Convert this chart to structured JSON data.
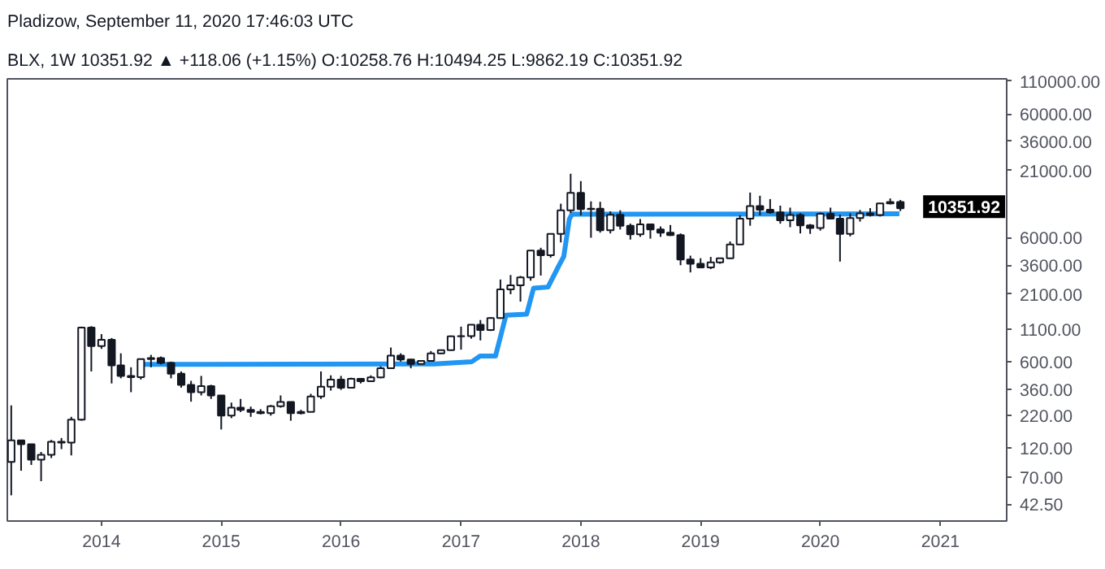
{
  "chart_data": {
    "type": "candlestick",
    "annotations": [
      "Pladizow, September 11, 2020 17:46:03 UTC",
      "BLX, 1W  10351.92 ▲ +118.06 (+1.15%)  O:10258.76  H:10494.25  L:9862.19  C:10351.92",
      {
        "text": "10351.92",
        "x": "2020-09",
        "y": 10351.92
      }
    ],
    "x": [
      "2013-04",
      "2013-05",
      "2013-06",
      "2013-07",
      "2013-08",
      "2013-09",
      "2013-10",
      "2013-11",
      "2013-12",
      "2014-01",
      "2014-02",
      "2014-03",
      "2014-04",
      "2014-05",
      "2014-06",
      "2014-07",
      "2014-08",
      "2014-09",
      "2014-10",
      "2014-11",
      "2014-12",
      "2015-01",
      "2015-02",
      "2015-03",
      "2015-04",
      "2015-05",
      "2015-06",
      "2015-07",
      "2015-08",
      "2015-09",
      "2015-10",
      "2015-11",
      "2015-12",
      "2016-01",
      "2016-02",
      "2016-03",
      "2016-04",
      "2016-05",
      "2016-06",
      "2016-07",
      "2016-08",
      "2016-09",
      "2016-10",
      "2016-11",
      "2016-12",
      "2017-01",
      "2017-02",
      "2017-03",
      "2017-04",
      "2017-05",
      "2017-06",
      "2017-07",
      "2017-08",
      "2017-09",
      "2017-10",
      "2017-11",
      "2017-12",
      "2018-01",
      "2018-02",
      "2018-03",
      "2018-04",
      "2018-05",
      "2018-06",
      "2018-07",
      "2018-08",
      "2018-09",
      "2018-10",
      "2018-11",
      "2018-12",
      "2019-01",
      "2019-02",
      "2019-03",
      "2019-04",
      "2019-05",
      "2019-06",
      "2019-07",
      "2019-08",
      "2019-09",
      "2019-10",
      "2019-11",
      "2019-12",
      "2020-01",
      "2020-02",
      "2020-03",
      "2020-04",
      "2020-05",
      "2020-06",
      "2020-07",
      "2020-08",
      "2020-09"
    ],
    "ohlc": [
      [
        93,
        266,
        50,
        139
      ],
      [
        139,
        140,
        79,
        129
      ],
      [
        129,
        130,
        88,
        97
      ],
      [
        97,
        112,
        65,
        106
      ],
      [
        106,
        140,
        100,
        135
      ],
      [
        135,
        145,
        118,
        133
      ],
      [
        133,
        215,
        105,
        204
      ],
      [
        204,
        1150,
        200,
        1130
      ],
      [
        1130,
        1160,
        500,
        800
      ],
      [
        800,
        1000,
        760,
        900
      ],
      [
        900,
        930,
        400,
        560
      ],
      [
        560,
        700,
        440,
        460
      ],
      [
        460,
        540,
        340,
        450
      ],
      [
        450,
        630,
        430,
        630
      ],
      [
        630,
        680,
        540,
        640
      ],
      [
        640,
        660,
        570,
        585
      ],
      [
        585,
        600,
        440,
        480
      ],
      [
        480,
        500,
        370,
        390
      ],
      [
        390,
        420,
        285,
        340
      ],
      [
        340,
        460,
        320,
        380
      ],
      [
        380,
        390,
        300,
        320
      ],
      [
        320,
        320,
        170,
        220
      ],
      [
        220,
        280,
        210,
        255
      ],
      [
        255,
        300,
        235,
        245
      ],
      [
        245,
        260,
        215,
        236
      ],
      [
        236,
        248,
        225,
        230
      ],
      [
        230,
        268,
        220,
        262
      ],
      [
        262,
        320,
        255,
        284
      ],
      [
        284,
        285,
        200,
        230
      ],
      [
        230,
        245,
        225,
        236
      ],
      [
        236,
        330,
        235,
        314
      ],
      [
        314,
        500,
        300,
        377
      ],
      [
        377,
        465,
        350,
        430
      ],
      [
        430,
        460,
        355,
        370
      ],
      [
        370,
        445,
        370,
        436
      ],
      [
        436,
        440,
        400,
        416
      ],
      [
        416,
        465,
        415,
        448
      ],
      [
        448,
        550,
        440,
        530
      ],
      [
        530,
        780,
        525,
        670
      ],
      [
        670,
        700,
        600,
        624
      ],
      [
        624,
        630,
        530,
        575
      ],
      [
        575,
        610,
        570,
        608
      ],
      [
        608,
        730,
        605,
        700
      ],
      [
        700,
        750,
        690,
        742
      ],
      [
        742,
        975,
        735,
        960
      ],
      [
        960,
        1150,
        750,
        965
      ],
      [
        965,
        1200,
        920,
        1190
      ],
      [
        1190,
        1300,
        890,
        1080
      ],
      [
        1080,
        1370,
        1060,
        1350
      ],
      [
        1350,
        2760,
        1330,
        2300
      ],
      [
        2300,
        3000,
        2100,
        2480
      ],
      [
        2480,
        2950,
        1830,
        2870
      ],
      [
        2870,
        4750,
        2700,
        4730
      ],
      [
        4730,
        4980,
        2970,
        4340
      ],
      [
        4340,
        6450,
        4150,
        6450
      ],
      [
        6450,
        11300,
        5500,
        10000
      ],
      [
        10000,
        19700,
        9500,
        13800
      ],
      [
        13800,
        17200,
        9100,
        10200
      ],
      [
        10200,
        11800,
        6000,
        10300
      ],
      [
        10300,
        11700,
        6600,
        6900
      ],
      [
        6900,
        9800,
        6500,
        9200
      ],
      [
        9200,
        10000,
        7000,
        7500
      ],
      [
        7500,
        7800,
        5800,
        6400
      ],
      [
        6400,
        8500,
        6100,
        7700
      ],
      [
        7700,
        7750,
        5900,
        7000
      ],
      [
        7000,
        7400,
        6100,
        6600
      ],
      [
        6600,
        7600,
        6200,
        6300
      ],
      [
        6300,
        6500,
        3600,
        4000
      ],
      [
        4000,
        4300,
        3150,
        3700
      ],
      [
        3700,
        4100,
        3400,
        3450
      ],
      [
        3450,
        4200,
        3350,
        3800
      ],
      [
        3800,
        4100,
        3700,
        4100
      ],
      [
        4100,
        5600,
        4050,
        5300
      ],
      [
        5300,
        9100,
        5300,
        8550
      ],
      [
        8550,
        13900,
        7500,
        10800
      ],
      [
        10800,
        13100,
        9100,
        10100
      ],
      [
        10100,
        12300,
        9400,
        9600
      ],
      [
        9600,
        10900,
        7800,
        8300
      ],
      [
        8300,
        10500,
        7300,
        9150
      ],
      [
        9150,
        9500,
        6500,
        7550
      ],
      [
        7550,
        7750,
        6450,
        7200
      ],
      [
        7200,
        9600,
        6850,
        9350
      ],
      [
        9350,
        10500,
        8450,
        8550
      ],
      [
        8550,
        9200,
        3850,
        6450
      ],
      [
        6450,
        9450,
        6150,
        8650
      ],
      [
        8650,
        10050,
        8100,
        9450
      ],
      [
        9450,
        10400,
        8900,
        9150
      ],
      [
        9150,
        11450,
        8900,
        11350
      ],
      [
        11350,
        12450,
        11150,
        11650
      ],
      [
        11650,
        12100,
        9850,
        10352
      ]
    ],
    "color": "#131722",
    "series": [
      {
        "type": "line",
        "color": "#2196f3",
        "x": [
          "2014-04-24",
          "2016-10-12",
          "2017-02-03",
          "2017-02-28",
          "2017-04-16",
          "2017-05-18",
          "2017-07-20",
          "2017-08-10",
          "2017-09-23",
          "2017-10-26",
          "2017-11-10",
          "2017-11-27",
          "2017-12-05",
          "2020-08-29"
        ],
        "values": [
          570,
          575,
          600,
          665,
          665,
          1420,
          1450,
          2350,
          2400,
          3570,
          4230,
          8470,
          9300,
          9350
        ]
      }
    ],
    "log": "y",
    "xlim": [
      "2013-03-20",
      "2021-07-22"
    ],
    "xticks": [
      "2014",
      "2015",
      "2016",
      "2017",
      "2018",
      "2019",
      "2020",
      "2021"
    ],
    "ylim": [
      31,
      115000
    ],
    "yticks": [
      {
        "value": 42.5,
        "label": "42.50"
      },
      {
        "value": 70,
        "label": "70.00"
      },
      {
        "value": 120,
        "label": "120.00"
      },
      {
        "value": 220,
        "label": "220.00"
      },
      {
        "value": 360,
        "label": "360.00"
      },
      {
        "value": 600,
        "label": "600.00"
      },
      {
        "value": 1100,
        "label": "1100.00"
      },
      {
        "value": 2100,
        "label": "2100.00"
      },
      {
        "value": 3600,
        "label": "3600.00"
      },
      {
        "value": 6000,
        "label": "6000.00"
      },
      {
        "value": 21000,
        "label": "21000.00"
      },
      {
        "value": 36000,
        "label": "36000.00"
      },
      {
        "value": 60000,
        "label": "60000.00"
      },
      {
        "value": 110000,
        "label": "110000.00"
      }
    ],
    "grid": false
  }
}
